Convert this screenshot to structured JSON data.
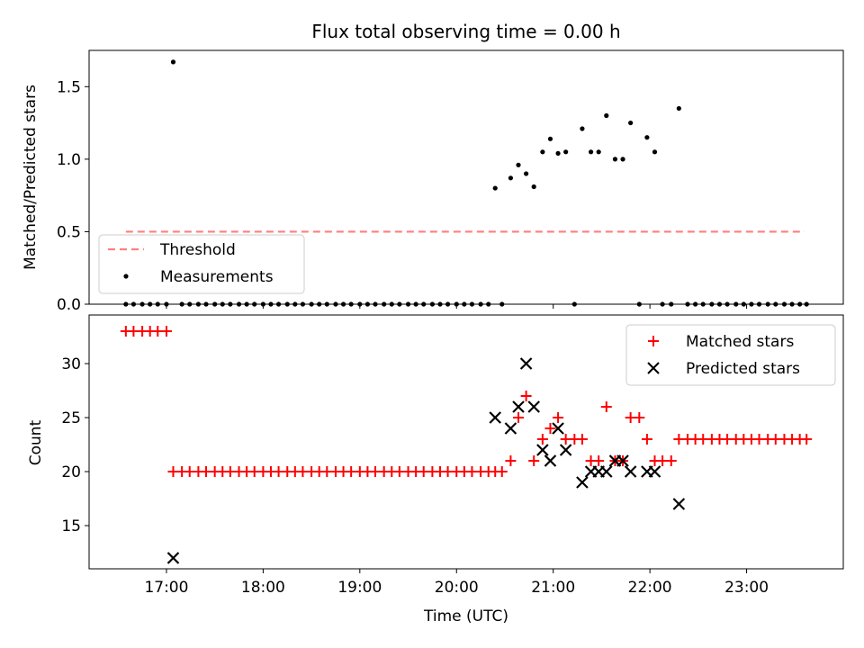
{
  "chart_data": [
    {
      "type": "scatter",
      "title": "Flux total observing time = 0.00 h",
      "ylabel": "Matched/Predicted stars",
      "xlabel": "",
      "xlim": [
        16.2,
        24.0
      ],
      "ylim": [
        0,
        1.75
      ],
      "yticks": [
        0.0,
        0.5,
        1.0,
        1.5
      ],
      "ytick_labels": [
        "0.0",
        "0.5",
        "1.0",
        "1.5"
      ],
      "threshold": {
        "name": "Threshold",
        "value": 0.5,
        "x_range": [
          16.58,
          23.6
        ],
        "color": "#ff7f7f"
      },
      "legend": {
        "position": "lower-left",
        "entries": [
          "Threshold",
          "Measurements"
        ]
      },
      "series": [
        {
          "name": "Measurements",
          "color": "#000000",
          "points": [
            [
              16.58,
              0
            ],
            [
              16.66,
              0
            ],
            [
              16.75,
              0
            ],
            [
              16.83,
              0
            ],
            [
              16.91,
              0
            ],
            [
              17.0,
              0
            ],
            [
              17.07,
              1.67
            ],
            [
              17.16,
              0
            ],
            [
              17.24,
              0
            ],
            [
              17.33,
              0
            ],
            [
              17.41,
              0
            ],
            [
              17.5,
              0
            ],
            [
              17.58,
              0
            ],
            [
              17.66,
              0
            ],
            [
              17.75,
              0
            ],
            [
              17.83,
              0
            ],
            [
              17.91,
              0
            ],
            [
              18.0,
              0
            ],
            [
              18.08,
              0
            ],
            [
              18.16,
              0
            ],
            [
              18.25,
              0
            ],
            [
              18.33,
              0
            ],
            [
              18.41,
              0
            ],
            [
              18.5,
              0
            ],
            [
              18.58,
              0
            ],
            [
              18.66,
              0
            ],
            [
              18.75,
              0
            ],
            [
              18.83,
              0
            ],
            [
              18.91,
              0
            ],
            [
              19.0,
              0
            ],
            [
              19.08,
              0
            ],
            [
              19.16,
              0
            ],
            [
              19.25,
              0
            ],
            [
              19.33,
              0
            ],
            [
              19.41,
              0
            ],
            [
              19.5,
              0
            ],
            [
              19.58,
              0
            ],
            [
              19.66,
              0
            ],
            [
              19.75,
              0
            ],
            [
              19.83,
              0
            ],
            [
              19.91,
              0
            ],
            [
              20.0,
              0
            ],
            [
              20.08,
              0
            ],
            [
              20.16,
              0
            ],
            [
              20.25,
              0
            ],
            [
              20.33,
              0
            ],
            [
              20.4,
              0.8
            ],
            [
              20.47,
              0
            ],
            [
              20.56,
              0.87
            ],
            [
              20.64,
              0.96
            ],
            [
              20.72,
              0.9
            ],
            [
              20.8,
              0.81
            ],
            [
              20.89,
              1.05
            ],
            [
              20.97,
              1.14
            ],
            [
              21.05,
              1.04
            ],
            [
              21.13,
              1.05
            ],
            [
              21.22,
              0
            ],
            [
              21.3,
              1.21
            ],
            [
              21.39,
              1.05
            ],
            [
              21.47,
              1.05
            ],
            [
              21.55,
              1.3
            ],
            [
              21.64,
              1.0
            ],
            [
              21.72,
              1.0
            ],
            [
              21.8,
              1.25
            ],
            [
              21.89,
              0
            ],
            [
              21.97,
              1.15
            ],
            [
              22.05,
              1.05
            ],
            [
              22.13,
              0
            ],
            [
              22.22,
              0
            ],
            [
              22.3,
              1.35
            ],
            [
              22.39,
              0
            ],
            [
              22.47,
              0
            ],
            [
              22.55,
              0
            ],
            [
              22.64,
              0
            ],
            [
              22.72,
              0
            ],
            [
              22.8,
              0
            ],
            [
              22.89,
              0
            ],
            [
              22.97,
              0
            ],
            [
              23.05,
              0
            ],
            [
              23.13,
              0
            ],
            [
              23.22,
              0
            ],
            [
              23.3,
              0
            ],
            [
              23.39,
              0
            ],
            [
              23.47,
              0
            ],
            [
              23.55,
              0
            ],
            [
              23.62,
              0
            ]
          ]
        }
      ]
    },
    {
      "type": "scatter",
      "title": "",
      "ylabel": "Count",
      "xlabel": "Time (UTC)",
      "xlim": [
        16.2,
        24.0
      ],
      "ylim": [
        11,
        34.5
      ],
      "yticks": [
        15,
        20,
        25,
        30
      ],
      "ytick_labels": [
        "15",
        "20",
        "25",
        "30"
      ],
      "xticks": [
        17,
        18,
        19,
        20,
        21,
        22,
        23
      ],
      "xtick_labels": [
        "17:00",
        "18:00",
        "19:00",
        "20:00",
        "21:00",
        "22:00",
        "23:00"
      ],
      "legend": {
        "position": "top-right",
        "entries": [
          "Matched stars",
          "Predicted stars"
        ]
      },
      "series": [
        {
          "name": "Matched stars",
          "marker": "plus",
          "color": "#ff0000",
          "points": [
            [
              16.58,
              33
            ],
            [
              16.66,
              33
            ],
            [
              16.75,
              33
            ],
            [
              16.83,
              33
            ],
            [
              16.91,
              33
            ],
            [
              17.0,
              33
            ],
            [
              17.07,
              20
            ],
            [
              17.16,
              20
            ],
            [
              17.24,
              20
            ],
            [
              17.33,
              20
            ],
            [
              17.41,
              20
            ],
            [
              17.5,
              20
            ],
            [
              17.58,
              20
            ],
            [
              17.66,
              20
            ],
            [
              17.75,
              20
            ],
            [
              17.83,
              20
            ],
            [
              17.91,
              20
            ],
            [
              18.0,
              20
            ],
            [
              18.08,
              20
            ],
            [
              18.16,
              20
            ],
            [
              18.25,
              20
            ],
            [
              18.33,
              20
            ],
            [
              18.41,
              20
            ],
            [
              18.5,
              20
            ],
            [
              18.58,
              20
            ],
            [
              18.66,
              20
            ],
            [
              18.75,
              20
            ],
            [
              18.83,
              20
            ],
            [
              18.91,
              20
            ],
            [
              19.0,
              20
            ],
            [
              19.08,
              20
            ],
            [
              19.16,
              20
            ],
            [
              19.25,
              20
            ],
            [
              19.33,
              20
            ],
            [
              19.41,
              20
            ],
            [
              19.5,
              20
            ],
            [
              19.58,
              20
            ],
            [
              19.66,
              20
            ],
            [
              19.75,
              20
            ],
            [
              19.83,
              20
            ],
            [
              19.91,
              20
            ],
            [
              20.0,
              20
            ],
            [
              20.08,
              20
            ],
            [
              20.16,
              20
            ],
            [
              20.25,
              20
            ],
            [
              20.33,
              20
            ],
            [
              20.4,
              20
            ],
            [
              20.47,
              20
            ],
            [
              20.56,
              21
            ],
            [
              20.64,
              25
            ],
            [
              20.72,
              27
            ],
            [
              20.8,
              21
            ],
            [
              20.89,
              23
            ],
            [
              20.97,
              24
            ],
            [
              21.05,
              25
            ],
            [
              21.13,
              23
            ],
            [
              21.22,
              23
            ],
            [
              21.3,
              23
            ],
            [
              21.39,
              21
            ],
            [
              21.47,
              21
            ],
            [
              21.55,
              26
            ],
            [
              21.64,
              21
            ],
            [
              21.72,
              21
            ],
            [
              21.8,
              25
            ],
            [
              21.89,
              25
            ],
            [
              21.97,
              23
            ],
            [
              22.05,
              21
            ],
            [
              22.13,
              21
            ],
            [
              22.22,
              21
            ],
            [
              22.3,
              23
            ],
            [
              22.39,
              23
            ],
            [
              22.47,
              23
            ],
            [
              22.55,
              23
            ],
            [
              22.64,
              23
            ],
            [
              22.72,
              23
            ],
            [
              22.8,
              23
            ],
            [
              22.89,
              23
            ],
            [
              22.97,
              23
            ],
            [
              23.05,
              23
            ],
            [
              23.13,
              23
            ],
            [
              23.22,
              23
            ],
            [
              23.3,
              23
            ],
            [
              23.39,
              23
            ],
            [
              23.47,
              23
            ],
            [
              23.55,
              23
            ],
            [
              23.62,
              23
            ]
          ]
        },
        {
          "name": "Predicted stars",
          "marker": "x",
          "color": "#000000",
          "points": [
            [
              17.07,
              12
            ],
            [
              20.4,
              25
            ],
            [
              20.56,
              24
            ],
            [
              20.64,
              26
            ],
            [
              20.72,
              30
            ],
            [
              20.8,
              26
            ],
            [
              20.89,
              22
            ],
            [
              20.97,
              21
            ],
            [
              21.05,
              24
            ],
            [
              21.13,
              22
            ],
            [
              21.3,
              19
            ],
            [
              21.39,
              20
            ],
            [
              21.47,
              20
            ],
            [
              21.55,
              20
            ],
            [
              21.64,
              21
            ],
            [
              21.72,
              21
            ],
            [
              21.8,
              20
            ],
            [
              21.97,
              20
            ],
            [
              22.05,
              20
            ],
            [
              22.3,
              17
            ]
          ]
        }
      ]
    }
  ]
}
